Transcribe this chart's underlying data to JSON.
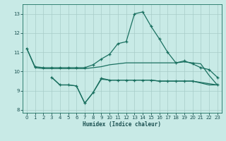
{
  "xlabel": "Humidex (Indice chaleur)",
  "bg_color": "#c8eae6",
  "grid_color": "#a8ccc8",
  "line_color": "#1a7060",
  "xlim": [
    -0.5,
    23.5
  ],
  "ylim": [
    7.85,
    13.5
  ],
  "xticks": [
    0,
    1,
    2,
    3,
    4,
    5,
    6,
    7,
    8,
    9,
    10,
    11,
    12,
    13,
    14,
    15,
    16,
    17,
    18,
    19,
    20,
    21,
    22,
    23
  ],
  "yticks": [
    8,
    9,
    10,
    11,
    12,
    13
  ],
  "curves": [
    {
      "x": [
        0,
        1,
        2,
        3,
        4,
        5,
        6,
        7,
        8,
        9,
        10,
        11,
        12,
        13,
        14,
        15,
        16,
        17,
        18,
        19,
        20,
        21,
        22,
        23
      ],
      "y": [
        11.2,
        10.25,
        10.2,
        10.2,
        10.2,
        10.2,
        10.2,
        10.2,
        10.35,
        10.65,
        10.9,
        11.45,
        11.55,
        13.0,
        13.1,
        12.35,
        11.7,
        11.0,
        10.45,
        10.55,
        10.4,
        10.2,
        10.1,
        9.7
      ],
      "has_markers": true
    },
    {
      "x": [
        0,
        1,
        2,
        3,
        4,
        5,
        6,
        7,
        8,
        9,
        10,
        11,
        12,
        13,
        14,
        15,
        16,
        17,
        18,
        19,
        20,
        21,
        22,
        23
      ],
      "y": [
        11.2,
        10.2,
        10.15,
        10.15,
        10.15,
        10.15,
        10.15,
        10.15,
        10.2,
        10.25,
        10.35,
        10.4,
        10.45,
        10.45,
        10.45,
        10.45,
        10.45,
        10.45,
        10.45,
        10.5,
        10.45,
        10.4,
        9.8,
        9.3
      ],
      "has_markers": false
    },
    {
      "x": [
        3,
        4,
        5,
        6,
        7,
        8,
        9,
        10,
        11,
        12,
        13,
        14,
        15,
        16,
        17,
        18,
        19,
        20,
        23
      ],
      "y": [
        9.7,
        9.3,
        9.3,
        9.25,
        8.35,
        8.9,
        9.65,
        9.55,
        9.55,
        9.55,
        9.55,
        9.55,
        9.55,
        9.5,
        9.5,
        9.5,
        9.5,
        9.5,
        9.3
      ],
      "has_markers": true
    },
    {
      "x": [
        3,
        4,
        5,
        6,
        7,
        8,
        9,
        10,
        11,
        12,
        13,
        14,
        15,
        16,
        17,
        18,
        19,
        20,
        21,
        22,
        23
      ],
      "y": [
        9.7,
        9.3,
        9.3,
        9.25,
        8.35,
        8.9,
        9.6,
        9.55,
        9.55,
        9.55,
        9.55,
        9.55,
        9.55,
        9.5,
        9.5,
        9.5,
        9.5,
        9.5,
        9.4,
        9.3,
        9.3
      ],
      "has_markers": false
    }
  ]
}
